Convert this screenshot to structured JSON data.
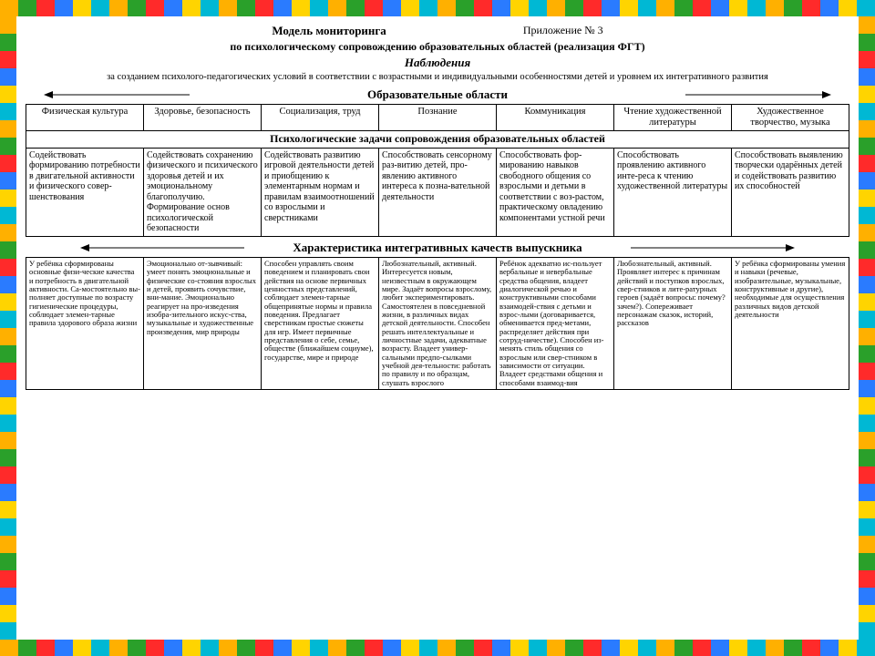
{
  "page": {
    "title": "Модель мониторинга",
    "appendix": "Приложение № 3",
    "subtitle": "по психологическому сопровождению образовательных областей (реализация ФГТ)",
    "observation_heading": "Наблюдения",
    "observation_text": "за созданием психолого-педагогических условий в соответствии с возрастными и индивидуальными особенностями детей и уровнем их интегративного развития"
  },
  "deco_colors": [
    "#ffb000",
    "#2aa02a",
    "#ff2a2a",
    "#2a7bff",
    "#ffd400",
    "#00b8d4"
  ],
  "section1": {
    "heading": "Образовательные области",
    "columns": [
      "Физическая культура",
      "Здоровье, безопасность",
      "Социализация, труд",
      "Познание",
      "Коммуникация",
      "Чтение художественной литературы",
      "Художественное творчество, музыка"
    ]
  },
  "section2": {
    "heading": "Психологические задачи сопровождения образовательных областей",
    "cells": [
      "Содействовать формированию потребности в двигательной активности и физического совер-шенствования",
      "Содействовать сохранению физического и психического здоровья детей и их эмоциональному благополучию. Формирование основ психологической безопасности",
      "Содействовать развитию игровой деятельности детей и приобщению к элементарным нормам и правилам взаимоотношений со взрослыми и сверстниками",
      "Способствовать сенсорному раз-витию детей, про-явлению активного интереса к позна-вательной деятельности",
      "Способствовать фор-мированию навыков свободного общения со взрослыми и детьми в соответствии с воз-растом, практическому овладению компонентами устной речи",
      "Способствовать проявлению активного инте-реса к чтению художественной литературы",
      "Способствовать выявлению творчески одарённых детей и содействовать развитию их способностей"
    ]
  },
  "section3": {
    "heading": "Характеристика интегративных качеств выпускника",
    "cells": [
      "У ребёнка сформированы основные физи-ческие качества и потребность в двигательной активности. Са-мостоятельно вы-полняет доступные по возрасту гигиенические процедуры, соблюдает элемен-тарные правила здорового образа жизни",
      "Эмоционально от-зывчивый: умеет понять эмоциональные и физические со-стояния взрослых и детей, проявить сочувствие, вни-мание. Эмоционально реагирует на про-изведения изобра-зительного искус-ства, музыкальные и художественные произведения, мир природы",
      "Способен управлять своим поведением и планировать свои действия на основе первичных ценностных представлений, соблюдает элемен-тарные общепринятые нормы и правила поведения. Предлагает сверстникам простые сюжеты для игр. Имеет первичные представления о себе, семье, обществе (ближайшем социуме), государстве, мире и природе",
      "Любознательный, активный. Интересуется новым, неизвестным в окружающем мире. Задаёт вопросы взрослому, любит экспериментировать. Самостоятелен в повседневной жизни, в различных видах детской деятельности. Способен решать интеллектуальные и личностные задачи, адекватные возрасту. Владеет универ-сальными предпо-сылками учебной дея-тельности: работать по правилу и по образцам, слушать взрослого",
      "Ребёнок адекватно ис-пользует вербальные и невербальные средства общения, владеет диалогической речью и конструктивными способами взаимодей-ствия с детьми и взрос-лыми (договаривается, обменивается пред-метами, распределяет действия при сотруд-ничестве). Способен из-менять стиль общения со взрослым или свер-стником в зависимости от ситуации. Владеет средствами общения и способами взаимод-вия",
      "Любознательный, активный. Проявляет интерес к причинам действий и поступков взрослых, свер-стников и лите-ратурных героев (задаёт вопросы: почему? зачем?). Сопереживает персонажам сказок, историй, рассказов",
      "У ребёнка сформированы умения и навыки (речевые, изобразительные, музыкальные, конструктивные и другие), необходимые для осуществления различных видов детской деятельности"
    ]
  }
}
